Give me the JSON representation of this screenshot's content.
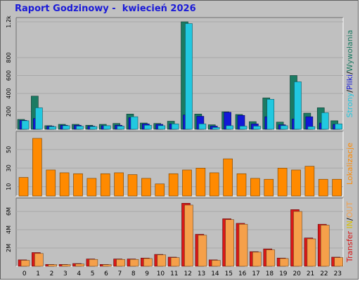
{
  "title": "Raport Godzinowy -  kwiecień 2026",
  "colors": {
    "background": "#c0c0c0",
    "title": "#1a1ad8",
    "strony": "#21c8e0",
    "pliki": "#1218d8",
    "wywolania": "#1b7b63",
    "lokalizacje": "#ff8a00",
    "transfer": "#d81818",
    "in": "#d8c000",
    "out": "#f5a04a"
  },
  "legends": {
    "top": [
      "Strony",
      "/",
      "Pliki",
      "/",
      "Wywołania"
    ],
    "middle": "Lokalizacje",
    "bottom": [
      "Transfer",
      " ",
      "IN",
      "/",
      "OUT"
    ]
  },
  "chart_data": [
    {
      "type": "bar",
      "categories": [
        "0",
        "1",
        "2",
        "3",
        "4",
        "5",
        "6",
        "7",
        "8",
        "9",
        "10",
        "11",
        "12",
        "13",
        "14",
        "15",
        "16",
        "17",
        "18",
        "19",
        "20",
        "21",
        "22",
        "23"
      ],
      "ylim": [
        0,
        1200
      ],
      "yticks": [
        "200",
        "400",
        "600",
        "800",
        "1.2k"
      ],
      "ytick_values": [
        200,
        400,
        600,
        800,
        1200
      ],
      "series": [
        {
          "name": "Wywołania",
          "values": [
            110,
            370,
            40,
            55,
            55,
            45,
            55,
            65,
            170,
            70,
            65,
            90,
            1200,
            170,
            50,
            195,
            165,
            85,
            350,
            80,
            600,
            180,
            240,
            95
          ]
        },
        {
          "name": "Pliki",
          "values": [
            100,
            120,
            35,
            45,
            45,
            35,
            40,
            45,
            130,
            60,
            55,
            60,
            160,
            145,
            35,
            190,
            155,
            60,
            140,
            50,
            115,
            140,
            70,
            55
          ]
        },
        {
          "name": "Strony",
          "values": [
            95,
            240,
            30,
            40,
            35,
            30,
            40,
            35,
            140,
            45,
            40,
            60,
            1180,
            60,
            20,
            40,
            35,
            35,
            335,
            40,
            530,
            30,
            185,
            60
          ]
        }
      ]
    },
    {
      "type": "bar",
      "categories": [
        "0",
        "1",
        "2",
        "3",
        "4",
        "5",
        "6",
        "7",
        "8",
        "9",
        "10",
        "11",
        "12",
        "13",
        "14",
        "15",
        "16",
        "17",
        "18",
        "19",
        "20",
        "21",
        "22",
        "23"
      ],
      "ylim": [
        0,
        65
      ],
      "yticks": [
        "10",
        "30",
        "50"
      ],
      "ytick_values": [
        10,
        30,
        50
      ],
      "series": [
        {
          "name": "Lokalizacje",
          "values": [
            20,
            62,
            28,
            25,
            24,
            19,
            24,
            25,
            23,
            19,
            13,
            24,
            28,
            30,
            25,
            40,
            24,
            19,
            18,
            30,
            28,
            32,
            18,
            18
          ]
        }
      ]
    },
    {
      "type": "bar",
      "categories": [
        "0",
        "1",
        "2",
        "3",
        "4",
        "5",
        "6",
        "7",
        "8",
        "9",
        "10",
        "11",
        "12",
        "13",
        "14",
        "15",
        "16",
        "17",
        "18",
        "19",
        "20",
        "21",
        "22",
        "23"
      ],
      "ylim": [
        0,
        7000000
      ],
      "yticks": [
        "2M",
        "4M",
        "6M"
      ],
      "ytick_values": [
        2000000,
        4000000,
        6000000
      ],
      "series": [
        {
          "name": "IN",
          "values": [
            700000,
            1500000,
            200000,
            200000,
            300000,
            800000,
            200000,
            800000,
            800000,
            900000,
            1300000,
            1000000,
            6900000,
            3500000,
            700000,
            5200000,
            4700000,
            1600000,
            1900000,
            900000,
            6200000,
            3100000,
            4600000,
            1000000
          ]
        },
        {
          "name": "OUT",
          "values": [
            650000,
            1400000,
            180000,
            180000,
            250000,
            750000,
            180000,
            750000,
            750000,
            850000,
            1250000,
            950000,
            6700000,
            3400000,
            650000,
            5100000,
            4600000,
            1550000,
            1800000,
            850000,
            6000000,
            3000000,
            4500000,
            950000
          ]
        }
      ]
    }
  ]
}
